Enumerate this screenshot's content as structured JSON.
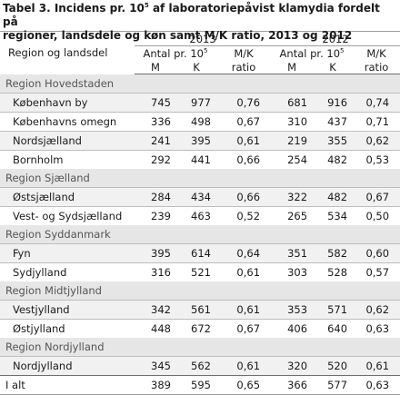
{
  "caption": {
    "line1": "Tabel 3. Incidens pr. 10",
    "line1_sup": "5",
    "line1_rest": " af laboratoriepåvist klamydia fordelt på",
    "line2": "regioner, landsdele og køn samt M/K ratio, 2013 og 2012"
  },
  "header": {
    "region_label": "Region og landsdel",
    "year1": "2013",
    "year2": "2012",
    "antal": "Antal pr. 10",
    "antal_sup": "5",
    "mk1": "M/K",
    "mk2": "ratio",
    "m": "M",
    "k": "K"
  },
  "regions": [
    {
      "name": "Region Hovedstaden",
      "rows": [
        {
          "name": "København by",
          "m13": "745",
          "k13": "977",
          "r13": "0,76",
          "m12": "681",
          "k12": "916",
          "r12": "0,74"
        },
        {
          "name": "Københavns omegn",
          "m13": "336",
          "k13": "498",
          "r13": "0,67",
          "m12": "310",
          "k12": "437",
          "r12": "0,71"
        },
        {
          "name": "Nordsjælland",
          "m13": "241",
          "k13": "395",
          "r13": "0,61",
          "m12": "219",
          "k12": "355",
          "r12": "0,62"
        },
        {
          "name": "Bornholm",
          "m13": "292",
          "k13": "441",
          "r13": "0,66",
          "m12": "254",
          "k12": "482",
          "r12": "0,53"
        }
      ]
    },
    {
      "name": "Region Sjælland",
      "rows": [
        {
          "name": "Østsjælland",
          "m13": "284",
          "k13": "434",
          "r13": "0,66",
          "m12": "322",
          "k12": "482",
          "r12": "0,67"
        },
        {
          "name": "Vest- og Sydsjælland",
          "m13": "239",
          "k13": "463",
          "r13": "0,52",
          "m12": "265",
          "k12": "534",
          "r12": "0,50"
        }
      ]
    },
    {
      "name": "Region Syddanmark",
      "rows": [
        {
          "name": "Fyn",
          "m13": "395",
          "k13": "614",
          "r13": "0,64",
          "m12": "351",
          "k12": "582",
          "r12": "0,60"
        },
        {
          "name": "Sydjylland",
          "m13": "316",
          "k13": "521",
          "r13": "0,61",
          "m12": "303",
          "k12": "528",
          "r12": "0,57"
        }
      ]
    },
    {
      "name": "Region Midtjylland",
      "rows": [
        {
          "name": "Vestjylland",
          "m13": "342",
          "k13": "561",
          "r13": "0,61",
          "m12": "353",
          "k12": "571",
          "r12": "0,62"
        },
        {
          "name": "Østjylland",
          "m13": "448",
          "k13": "672",
          "r13": "0,67",
          "m12": "406",
          "k12": "640",
          "r12": "0,63"
        }
      ]
    },
    {
      "name": "Region Nordjylland",
      "rows": [
        {
          "name": "Nordjylland",
          "m13": "345",
          "k13": "562",
          "r13": "0,61",
          "m12": "320",
          "k12": "520",
          "r12": "0,61"
        }
      ]
    }
  ],
  "total": {
    "name": "I alt",
    "m13": "389",
    "k13": "595",
    "r13": "0,65",
    "m12": "366",
    "k12": "577",
    "r12": "0,63"
  }
}
